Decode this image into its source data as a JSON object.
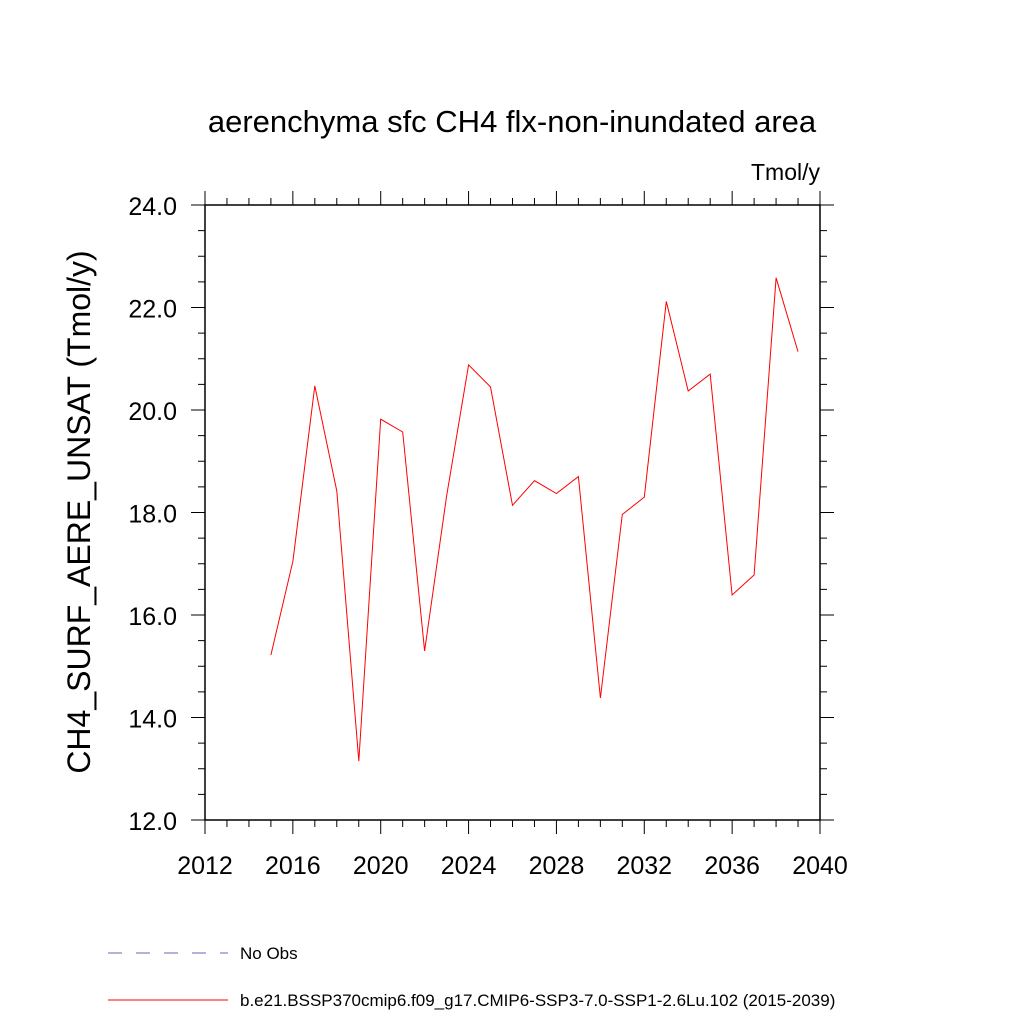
{
  "chart_data": {
    "type": "line",
    "title": "aerenchyma sfc CH4 flx-non-inundated area",
    "units_label": "Tmol/y",
    "xlabel": "",
    "ylabel": "CH4_SURF_AERE_UNSAT  (Tmol/y)",
    "xlim": [
      2012,
      2040
    ],
    "ylim": [
      12.0,
      24.0
    ],
    "x_ticks": [
      2012,
      2016,
      2020,
      2024,
      2028,
      2032,
      2036,
      2040
    ],
    "x_tick_labels": [
      "2012",
      "2016",
      "2020",
      "2024",
      "2028",
      "2032",
      "2036",
      "2040"
    ],
    "y_ticks": [
      12,
      14,
      16,
      18,
      20,
      22,
      24
    ],
    "y_tick_labels": [
      "12.0",
      "14.0",
      "16.0",
      "18.0",
      "20.0",
      "22.0",
      "24.0"
    ],
    "grid": false,
    "legend_position": "bottom",
    "series": [
      {
        "name": "No Obs",
        "color": "#7060b0",
        "style": "dashed",
        "x": [],
        "values": []
      },
      {
        "name": "b.e21.BSSP370cmip6.f09_g17.CMIP6-SSP3-7.0-SSP1-2.6Lu.102 (2015-2039)",
        "color": "#ff0000",
        "style": "solid",
        "x": [
          2015,
          2016,
          2017,
          2018,
          2019,
          2020,
          2021,
          2022,
          2023,
          2024,
          2025,
          2026,
          2027,
          2028,
          2029,
          2030,
          2031,
          2032,
          2033,
          2034,
          2035,
          2036,
          2037,
          2038,
          2039
        ],
        "values": [
          15.22,
          17.05,
          20.47,
          18.42,
          13.15,
          19.82,
          19.57,
          15.3,
          18.32,
          20.88,
          20.45,
          18.14,
          18.62,
          18.37,
          18.7,
          14.38,
          17.96,
          18.3,
          22.12,
          20.37,
          20.7,
          16.39,
          16.78,
          22.58,
          21.14
        ]
      }
    ]
  }
}
